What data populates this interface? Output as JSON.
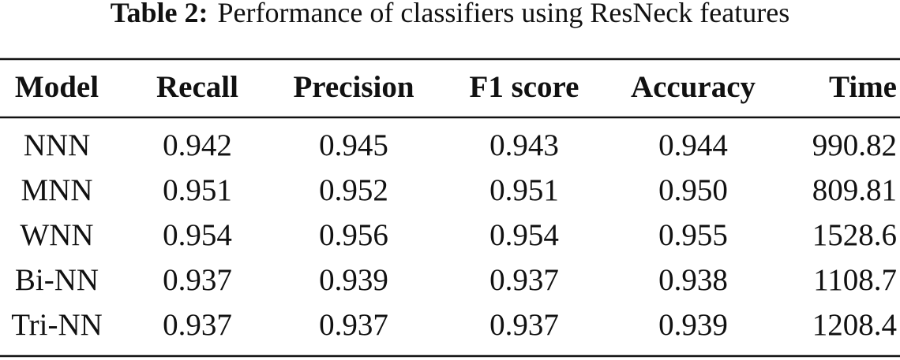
{
  "caption": {
    "label": "Table 2:",
    "text": "Performance of classifiers using ResNeck features"
  },
  "table": {
    "header": [
      "Model",
      "Recall",
      "Precision",
      "F1 score",
      "Accuracy",
      "Time"
    ],
    "rows": [
      [
        "NNN",
        "0.942",
        "0.945",
        "0.943",
        "0.944",
        "990.82"
      ],
      [
        "MNN",
        "0.951",
        "0.952",
        "0.951",
        "0.950",
        "809.81"
      ],
      [
        "WNN",
        "0.954",
        "0.956",
        "0.954",
        "0.955",
        "1528.6"
      ],
      [
        "Bi-NN",
        "0.937",
        "0.939",
        "0.937",
        "0.938",
        "1108.7"
      ],
      [
        "Tri-NN",
        "0.937",
        "0.937",
        "0.937",
        "0.939",
        "1208.4"
      ]
    ]
  }
}
